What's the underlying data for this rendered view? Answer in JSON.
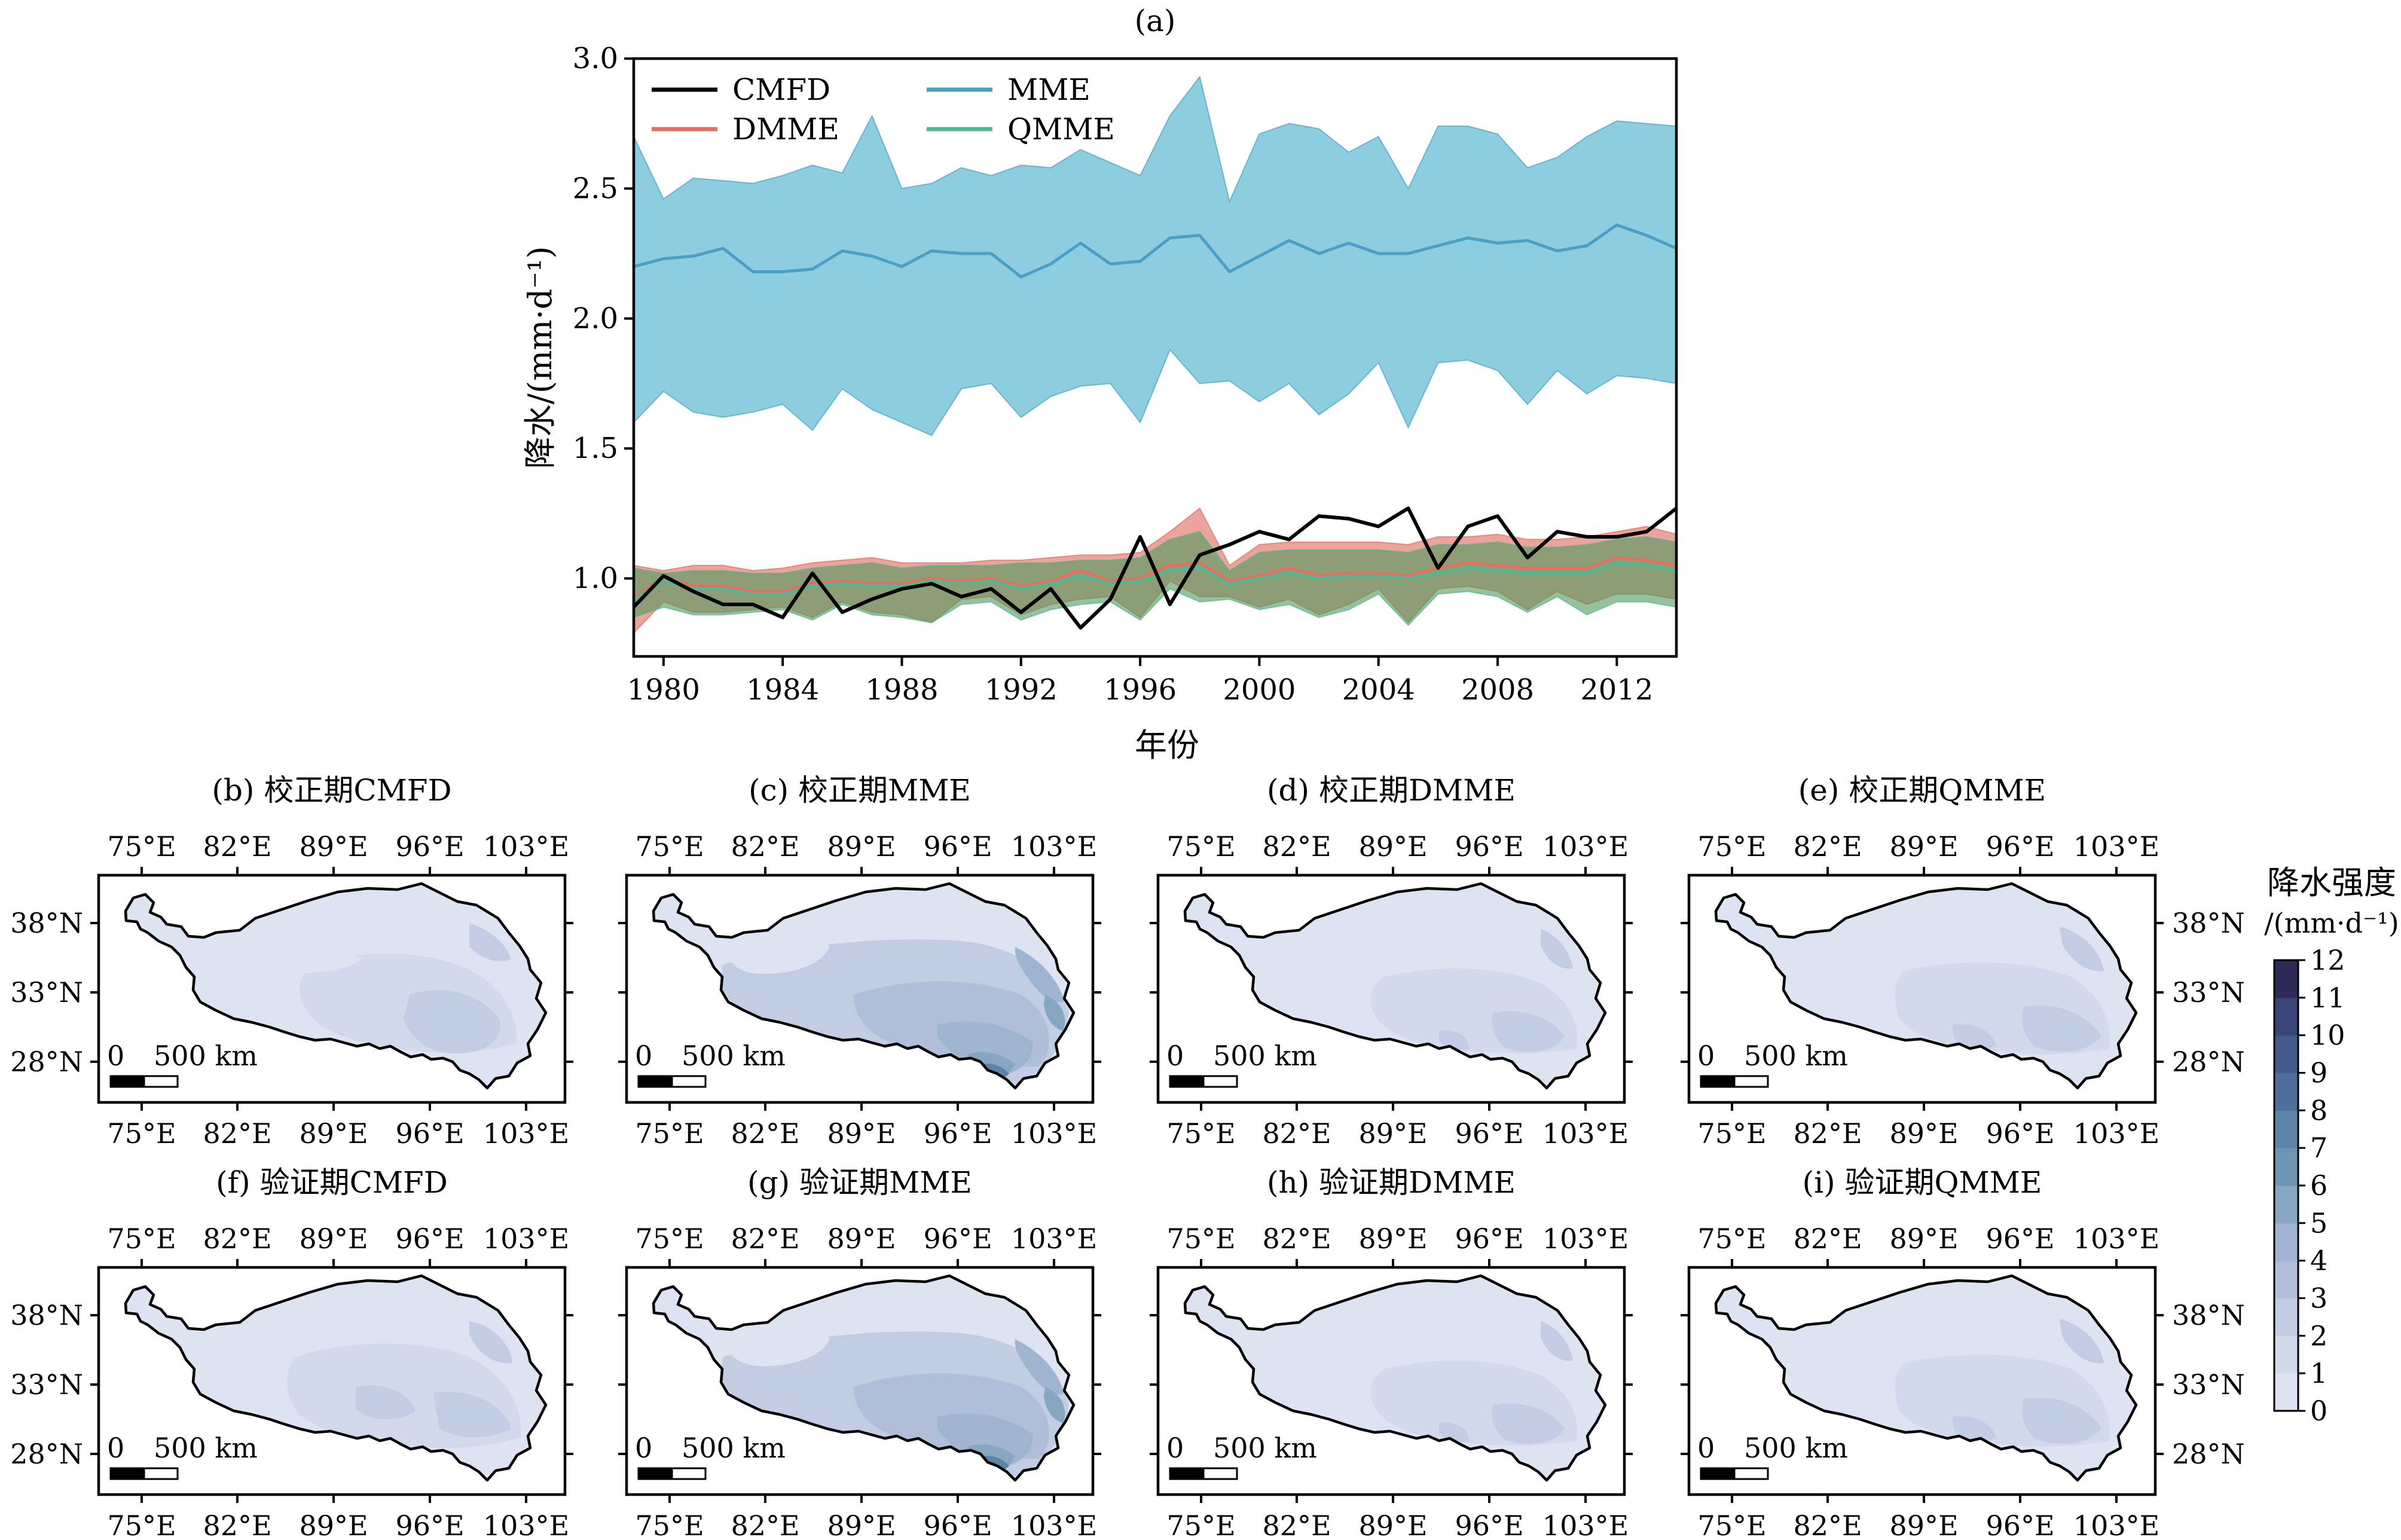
{
  "chart_data": [
    {
      "type": "line",
      "title": "(a)",
      "xlabel": "年份",
      "ylabel": "降水/(mm·d⁻¹)",
      "xlim": [
        1979,
        2014
      ],
      "ylim": [
        0.7,
        3.0
      ],
      "xticks": [
        "1980",
        "1984",
        "1988",
        "1992",
        "1996",
        "2000",
        "2004",
        "2008",
        "2012"
      ],
      "yticks": [
        "1.0",
        "1.5",
        "2.0",
        "2.5",
        "3.0"
      ],
      "legend_position": "top-left, two columns",
      "x": [
        1979,
        1980,
        1981,
        1982,
        1983,
        1984,
        1985,
        1986,
        1987,
        1988,
        1989,
        1990,
        1991,
        1992,
        1993,
        1994,
        1995,
        1996,
        1997,
        1998,
        1999,
        2000,
        2001,
        2002,
        2003,
        2004,
        2005,
        2006,
        2007,
        2008,
        2009,
        2010,
        2011,
        2012,
        2013,
        2014
      ],
      "series": [
        {
          "name": "CMFD",
          "color": "#000000",
          "values": [
            0.89,
            1.01,
            0.95,
            0.9,
            0.9,
            0.85,
            1.02,
            0.87,
            0.92,
            0.96,
            0.98,
            0.93,
            0.96,
            0.87,
            0.96,
            0.81,
            0.92,
            1.16,
            0.9,
            1.09,
            1.13,
            1.18,
            1.15,
            1.24,
            1.23,
            1.2,
            1.27,
            1.04,
            1.2,
            1.24,
            1.08,
            1.18,
            1.16,
            1.16,
            1.18,
            1.27
          ]
        },
        {
          "name": "MME",
          "color": "#4aa0c4",
          "band_color": "#8ccde0",
          "values": [
            2.2,
            2.23,
            2.24,
            2.27,
            2.18,
            2.18,
            2.19,
            2.26,
            2.24,
            2.2,
            2.26,
            2.25,
            2.25,
            2.16,
            2.21,
            2.29,
            2.21,
            2.22,
            2.31,
            2.32,
            2.18,
            2.24,
            2.3,
            2.25,
            2.29,
            2.25,
            2.25,
            2.28,
            2.31,
            2.29,
            2.3,
            2.26,
            2.28,
            2.36,
            2.32,
            2.27
          ],
          "upper": [
            2.7,
            2.46,
            2.54,
            2.53,
            2.52,
            2.55,
            2.59,
            2.56,
            2.78,
            2.5,
            2.52,
            2.58,
            2.55,
            2.59,
            2.58,
            2.65,
            2.6,
            2.55,
            2.78,
            2.93,
            2.45,
            2.71,
            2.75,
            2.73,
            2.64,
            2.7,
            2.5,
            2.74,
            2.74,
            2.71,
            2.58,
            2.62,
            2.7,
            2.76,
            2.75,
            2.74
          ],
          "lower": [
            1.6,
            1.72,
            1.64,
            1.62,
            1.64,
            1.67,
            1.57,
            1.73,
            1.65,
            1.6,
            1.55,
            1.73,
            1.75,
            1.62,
            1.7,
            1.74,
            1.75,
            1.6,
            1.88,
            1.75,
            1.76,
            1.68,
            1.75,
            1.63,
            1.71,
            1.83,
            1.58,
            1.83,
            1.84,
            1.8,
            1.67,
            1.8,
            1.71,
            1.78,
            1.77,
            1.75
          ]
        },
        {
          "name": "DMME",
          "color": "#e07060",
          "band_color": "#e8948a",
          "values": [
            0.93,
            1.0,
            0.97,
            0.97,
            0.95,
            0.95,
            0.98,
            0.99,
            0.98,
            0.98,
            1.0,
            0.99,
            1.0,
            0.97,
            0.99,
            1.03,
            0.99,
            1.0,
            1.05,
            1.06,
            0.99,
            1.01,
            1.04,
            1.01,
            1.02,
            1.02,
            1.01,
            1.04,
            1.06,
            1.05,
            1.04,
            1.04,
            1.04,
            1.08,
            1.07,
            1.05
          ],
          "upper": [
            1.05,
            1.03,
            1.05,
            1.05,
            1.03,
            1.04,
            1.06,
            1.07,
            1.08,
            1.06,
            1.06,
            1.06,
            1.07,
            1.07,
            1.08,
            1.09,
            1.09,
            1.1,
            1.18,
            1.27,
            1.05,
            1.13,
            1.14,
            1.14,
            1.14,
            1.14,
            1.13,
            1.16,
            1.16,
            1.17,
            1.15,
            1.15,
            1.16,
            1.18,
            1.2,
            1.17
          ],
          "lower": [
            0.79,
            0.91,
            0.87,
            0.87,
            0.88,
            0.89,
            0.85,
            0.91,
            0.87,
            0.86,
            0.83,
            0.92,
            0.93,
            0.86,
            0.9,
            0.92,
            0.93,
            0.85,
            0.99,
            0.93,
            0.93,
            0.89,
            0.92,
            0.86,
            0.9,
            0.96,
            0.83,
            0.96,
            0.97,
            0.95,
            0.88,
            0.95,
            0.9,
            0.94,
            0.94,
            0.92
          ]
        },
        {
          "name": "QMME",
          "color": "#50b890",
          "band_color": "#4e9a5c",
          "values": [
            0.92,
            0.99,
            0.96,
            0.96,
            0.94,
            0.94,
            0.97,
            0.98,
            0.97,
            0.97,
            0.99,
            0.98,
            0.99,
            0.96,
            0.98,
            1.01,
            0.98,
            0.99,
            1.03,
            1.04,
            0.98,
            1.0,
            1.02,
            1.0,
            1.01,
            1.01,
            1.0,
            1.02,
            1.04,
            1.03,
            1.02,
            1.02,
            1.02,
            1.06,
            1.05,
            1.03
          ],
          "upper": [
            1.04,
            1.02,
            1.03,
            1.03,
            1.02,
            1.02,
            1.04,
            1.05,
            1.06,
            1.04,
            1.05,
            1.05,
            1.05,
            1.06,
            1.06,
            1.07,
            1.07,
            1.08,
            1.15,
            1.18,
            1.03,
            1.1,
            1.11,
            1.11,
            1.11,
            1.11,
            1.1,
            1.13,
            1.13,
            1.14,
            1.12,
            1.12,
            1.13,
            1.15,
            1.16,
            1.14
          ],
          "lower": [
            0.85,
            0.89,
            0.86,
            0.86,
            0.87,
            0.88,
            0.84,
            0.9,
            0.86,
            0.85,
            0.83,
            0.9,
            0.91,
            0.84,
            0.88,
            0.9,
            0.91,
            0.84,
            0.96,
            0.91,
            0.92,
            0.88,
            0.9,
            0.85,
            0.88,
            0.94,
            0.82,
            0.94,
            0.95,
            0.93,
            0.87,
            0.93,
            0.86,
            0.91,
            0.91,
            0.89
          ]
        }
      ]
    },
    {
      "type": "heatmap",
      "panels": [
        {
          "title": "(b) 校正期CMFD",
          "variant": "cmfd1"
        },
        {
          "title": "(c) 校正期MME",
          "variant": "mme"
        },
        {
          "title": "(d) 校正期DMME",
          "variant": "dmme"
        },
        {
          "title": "(e) 校正期QMME",
          "variant": "qmme"
        },
        {
          "title": "(f) 验证期CMFD",
          "variant": "cmfd2"
        },
        {
          "title": "(g) 验证期MME",
          "variant": "mme"
        },
        {
          "title": "(h) 验证期DMME",
          "variant": "dmme"
        },
        {
          "title": "(i) 验证期QMME",
          "variant": "qmme"
        }
      ],
      "lon_ticks": [
        "75°E",
        "82°E",
        "89°E",
        "96°E",
        "103°E"
      ],
      "lat_ticks": [
        "38°N",
        "33°N",
        "28°N"
      ],
      "scale_bar": {
        "zero": "0",
        "label": "500 km"
      },
      "colorbar": {
        "title_line1": "降水强度",
        "title_line2": "/(mm·d⁻¹)",
        "ticks": [
          "0",
          "1",
          "2",
          "3",
          "4",
          "5",
          "6",
          "7",
          "8",
          "9",
          "10",
          "11",
          "12"
        ],
        "colors": [
          "#e8ecf6",
          "#dde3f1",
          "#d1d9ea",
          "#c2cde3",
          "#b0bed9",
          "#9fb4cf",
          "#86a6c2",
          "#6e95b3",
          "#5b84a7",
          "#4f6f9a",
          "#445b8a",
          "#3a4577",
          "#2d2a5a"
        ]
      }
    }
  ]
}
